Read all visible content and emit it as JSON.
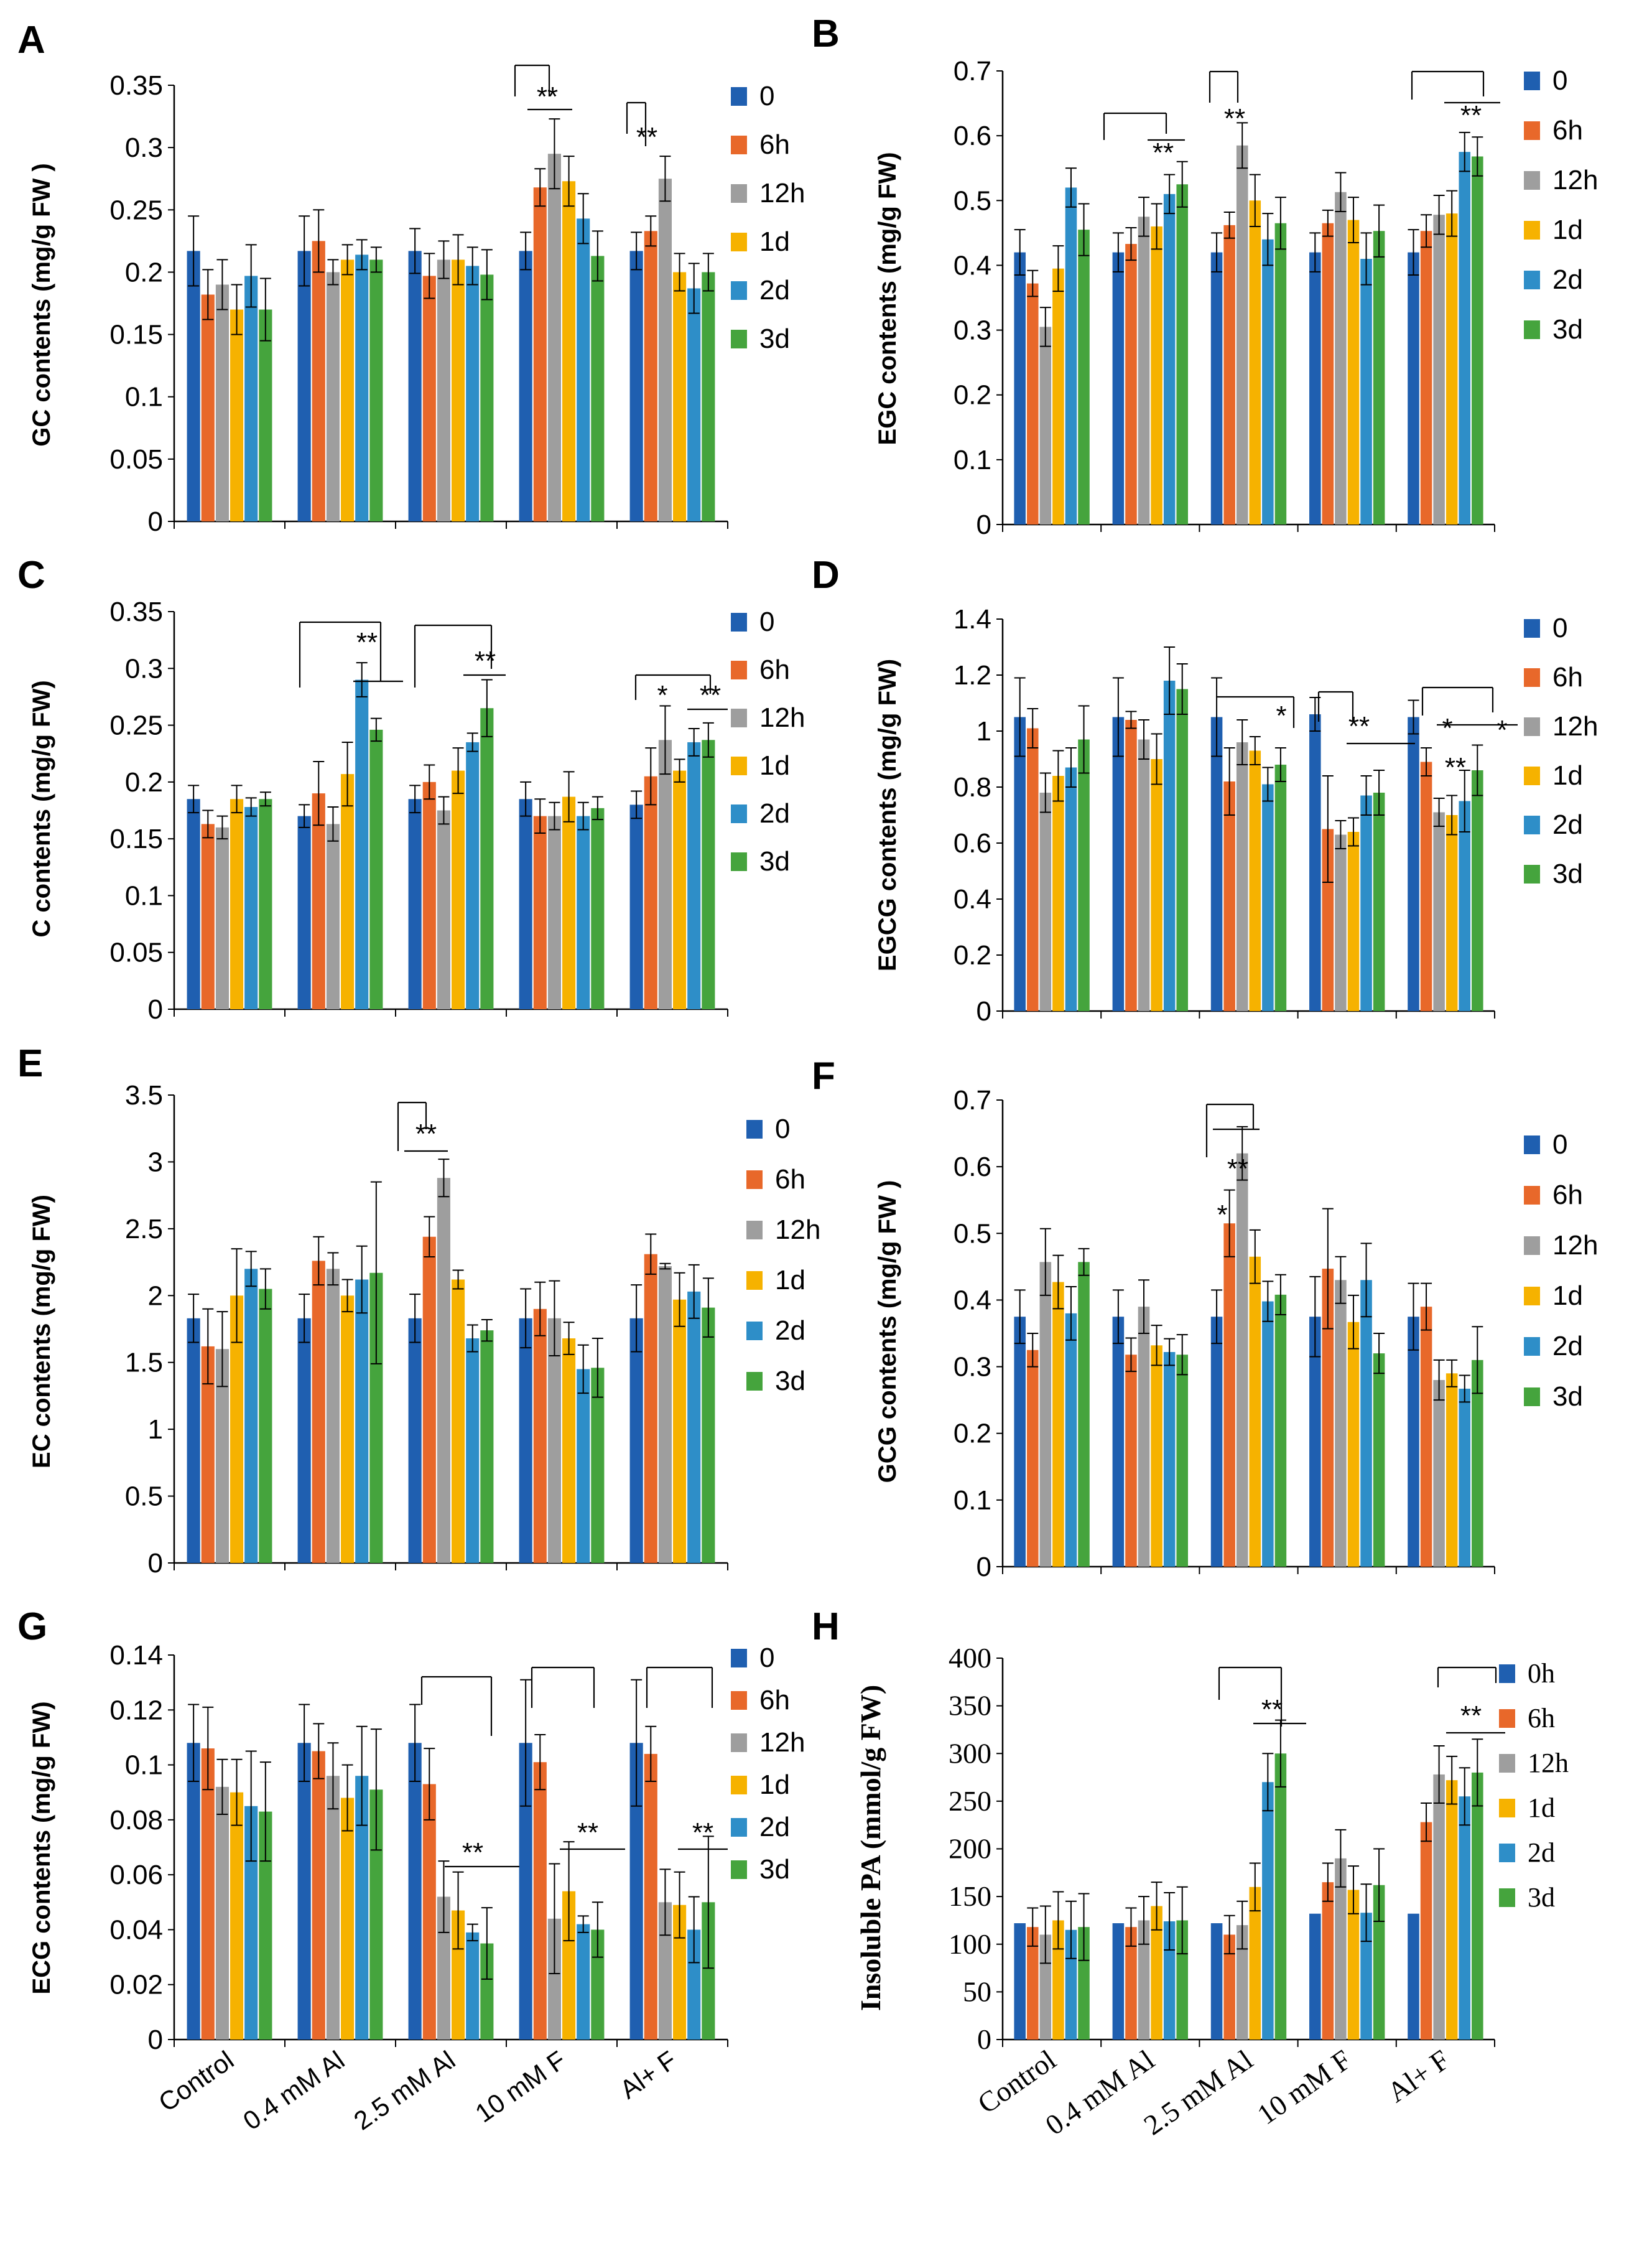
{
  "colors": {
    "0": "#1f5fb0",
    "6h": "#e8682a",
    "12h": "#9e9e9e",
    "1d": "#f6b200",
    "2d": "#2e8ec8",
    "3d": "#45a43d"
  },
  "chart_data": [
    {
      "panel": "A",
      "type": "bar",
      "ylabel": "GC contents (mg/g FW )",
      "ylim": [
        0,
        0.35
      ],
      "yticks": [
        "0",
        "0.05",
        "0.1",
        "0.15",
        "0.2",
        "0.25",
        "0.3",
        "0.35"
      ],
      "categories": [
        "Control",
        "0.4 mM Al",
        "2.5 mM Al",
        "10 mM F",
        "Al+ F"
      ],
      "legend": [
        "0",
        "6h",
        "12h",
        "1d",
        "2d",
        "3d"
      ],
      "series": [
        {
          "name": "0",
          "values": [
            0.217,
            0.217,
            0.217,
            0.217,
            0.217
          ],
          "errors": [
            0.028,
            0.028,
            0.018,
            0.015,
            0.015
          ]
        },
        {
          "name": "6h",
          "values": [
            0.182,
            0.225,
            0.197,
            0.268,
            0.233
          ],
          "errors": [
            0.02,
            0.025,
            0.018,
            0.015,
            0.012
          ]
        },
        {
          "name": "12h",
          "values": [
            0.19,
            0.2,
            0.21,
            0.295,
            0.275
          ],
          "errors": [
            0.02,
            0.01,
            0.015,
            0.028,
            0.018
          ]
        },
        {
          "name": "1d",
          "values": [
            0.17,
            0.21,
            0.21,
            0.273,
            0.2
          ],
          "errors": [
            0.02,
            0.012,
            0.02,
            0.02,
            0.015
          ]
        },
        {
          "name": "2d",
          "values": [
            0.197,
            0.214,
            0.205,
            0.243,
            0.187
          ],
          "errors": [
            0.025,
            0.012,
            0.015,
            0.02,
            0.02
          ]
        },
        {
          "name": "3d",
          "values": [
            0.17,
            0.21,
            0.198,
            0.213,
            0.2
          ],
          "errors": [
            0.025,
            0.01,
            0.02,
            0.02,
            0.015
          ]
        }
      ],
      "annotations": [
        "**",
        "**"
      ]
    },
    {
      "panel": "B",
      "type": "bar",
      "ylabel": "EGC contents (mg/g FW)",
      "ylim": [
        0,
        0.7
      ],
      "yticks": [
        "0",
        "0.1",
        "0.2",
        "0.3",
        "0.4",
        "0.5",
        "0.6",
        "0.7"
      ],
      "categories": [
        "Control",
        "0.4 mM Al",
        "2.5 mM Al",
        "10 mM F",
        "Al+ F"
      ],
      "legend": [
        "0",
        "6h",
        "12h",
        "1d",
        "2d",
        "3d"
      ],
      "series": [
        {
          "name": "0",
          "values": [
            0.42,
            0.42,
            0.42,
            0.42,
            0.42
          ],
          "errors": [
            0.035,
            0.03,
            0.03,
            0.03,
            0.035
          ]
        },
        {
          "name": "6h",
          "values": [
            0.372,
            0.433,
            0.462,
            0.465,
            0.453
          ],
          " errors": [
            0.02,
            0.025,
            0.02,
            0.02,
            0.025
          ],
          "errors": [
            0.02,
            0.025,
            0.02,
            0.02,
            0.025
          ]
        },
        {
          "name": "12h",
          "values": [
            0.305,
            0.475,
            0.585,
            0.513,
            0.478
          ],
          "errors": [
            0.03,
            0.03,
            0.035,
            0.03,
            0.03
          ]
        },
        {
          "name": "1d",
          "values": [
            0.395,
            0.46,
            0.5,
            0.47,
            0.48
          ],
          "errors": [
            0.035,
            0.035,
            0.04,
            0.035,
            0.035
          ]
        },
        {
          "name": "2d",
          "values": [
            0.52,
            0.51,
            0.44,
            0.41,
            0.575
          ],
          "errors": [
            0.03,
            0.03,
            0.04,
            0.04,
            0.03
          ]
        },
        {
          "name": "3d",
          "values": [
            0.455,
            0.525,
            0.465,
            0.453,
            0.568
          ],
          "errors": [
            0.04,
            0.035,
            0.04,
            0.04,
            0.03
          ]
        }
      ],
      "annotations": [
        "**",
        "**",
        "**"
      ]
    },
    {
      "panel": "C",
      "type": "bar",
      "ylabel": "C contents (mg/g FW)",
      "ylim": [
        0,
        0.35
      ],
      "yticks": [
        "0",
        "0.05",
        "0.1",
        "0.15",
        "0.2",
        "0.25",
        "0.3",
        "0.35"
      ],
      "categories": [
        "Control",
        "0.4 mM Al",
        "2.5 mM Al",
        "10 mM F",
        "Al+ F"
      ],
      "legend": [
        "0",
        "6h",
        "12h",
        "1d",
        "2d",
        "3d"
      ],
      "series": [
        {
          "name": "0",
          "values": [
            0.185,
            0.17,
            0.185,
            0.185,
            0.18
          ],
          "errors": [
            0.012,
            0.01,
            0.012,
            0.015,
            0.012
          ]
        },
        {
          "name": "6h",
          "values": [
            0.163,
            0.19,
            0.2,
            0.17,
            0.205
          ],
          "errors": [
            0.012,
            0.028,
            0.015,
            0.015,
            0.025
          ]
        },
        {
          "name": "12h",
          "values": [
            0.16,
            0.163,
            0.175,
            0.17,
            0.237
          ],
          "errors": [
            0.01,
            0.015,
            0.012,
            0.012,
            0.03
          ]
        },
        {
          "name": "1d",
          "values": [
            0.185,
            0.207,
            0.21,
            0.187,
            0.21
          ],
          "errors": [
            0.012,
            0.028,
            0.02,
            0.022,
            0.01
          ]
        },
        {
          "name": "2d",
          "values": [
            0.178,
            0.29,
            0.235,
            0.17,
            0.235
          ],
          "errors": [
            0.008,
            0.015,
            0.008,
            0.012,
            0.012
          ]
        },
        {
          "name": "3d",
          "values": [
            0.185,
            0.246,
            0.265,
            0.177,
            0.237
          ],
          "errors": [
            0.006,
            0.01,
            0.025,
            0.01,
            0.015
          ]
        }
      ],
      "annotations": [
        "**",
        "**",
        "*",
        "**"
      ]
    },
    {
      "panel": "D",
      "type": "bar",
      "ylabel": "EGCG contents (mg/g FW)",
      "ylim": [
        0,
        1.4
      ],
      "yticks": [
        "0",
        "0.2",
        "0.4",
        "0.6",
        "0.8",
        "1",
        "1.2",
        "1.4"
      ],
      "categories": [
        "Control",
        "0.4 mM Al",
        "2.5 mM Al",
        "10 mM F",
        "Al+ F"
      ],
      "legend": [
        "0",
        "6h",
        "12h",
        "1d",
        "2d",
        "3d"
      ],
      "series": [
        {
          "name": "0",
          "values": [
            1.05,
            1.05,
            1.05,
            1.06,
            1.05
          ],
          "errors": [
            0.14,
            0.14,
            0.14,
            0.06,
            0.06
          ]
        },
        {
          "name": "6h",
          "values": [
            1.01,
            1.04,
            0.82,
            0.65,
            0.89
          ],
          "errors": [
            0.07,
            0.03,
            0.12,
            0.19,
            0.05
          ]
        },
        {
          "name": "12h",
          "values": [
            0.78,
            0.97,
            0.96,
            0.63,
            0.71
          ],
          "errors": [
            0.07,
            0.07,
            0.08,
            0.05,
            0.05
          ]
        },
        {
          "name": "1d",
          "values": [
            0.84,
            0.9,
            0.93,
            0.64,
            0.7
          ],
          "errors": [
            0.09,
            0.09,
            0.05,
            0.05,
            0.07
          ]
        },
        {
          "name": "2d",
          "values": [
            0.87,
            1.18,
            0.81,
            0.77,
            0.75
          ],
          "errors": [
            0.07,
            0.12,
            0.06,
            0.07,
            0.11
          ]
        },
        {
          "name": "3d",
          "values": [
            0.97,
            1.15,
            0.88,
            0.78,
            0.86
          ],
          "errors": [
            0.12,
            0.09,
            0.06,
            0.08,
            0.09
          ]
        }
      ],
      "annotations": [
        "*",
        "**",
        "*",
        "**",
        "*"
      ]
    },
    {
      "panel": "E",
      "type": "bar",
      "ylabel": "EC contents (mg/g FW)",
      "ylim": [
        0,
        3.5
      ],
      "yticks": [
        "0",
        "0.5",
        "1",
        "1.5",
        "2",
        "2.5",
        "3",
        "3.5"
      ],
      "categories": [
        "Control",
        "0.4 mM Al",
        "2.5 mM Al",
        "10 mM F",
        "Al+ F"
      ],
      "legend": [
        "0",
        "6h",
        "12h",
        "1d",
        "2d",
        "3d"
      ],
      "series": [
        {
          "name": "0",
          "values": [
            1.83,
            1.83,
            1.83,
            1.83,
            1.83
          ],
          "errors": [
            0.18,
            0.18,
            0.18,
            0.22,
            0.25
          ]
        },
        {
          "name": "6h",
          "values": [
            1.62,
            2.26,
            2.44,
            1.9,
            2.31
          ],
          "errors": [
            0.28,
            0.18,
            0.15,
            0.2,
            0.15
          ]
        },
        {
          "name": "12h",
          "values": [
            1.6,
            2.2,
            2.88,
            1.83,
            2.22
          ],
          "errors": [
            0.28,
            0.12,
            0.14,
            0.28,
            0.02
          ]
        },
        {
          "name": "1d",
          "values": [
            2.0,
            2.0,
            2.12,
            1.68,
            1.97
          ],
          "errors": [
            0.35,
            0.12,
            0.07,
            0.12,
            0.2
          ]
        },
        {
          "name": "2d",
          "values": [
            2.2,
            2.12,
            1.68,
            1.45,
            2.03
          ],
          "errors": [
            0.13,
            0.25,
            0.1,
            0.18,
            0.2
          ]
        },
        {
          "name": "3d",
          "values": [
            2.05,
            2.17,
            1.74,
            1.46,
            1.91
          ],
          "errors": [
            0.15,
            0.68,
            0.08,
            0.22,
            0.22
          ]
        }
      ],
      "annotations": [
        "**"
      ]
    },
    {
      "panel": "F",
      "type": "bar",
      "ylabel": "GCG contents (mg/g FW )",
      "ylim": [
        0,
        0.7
      ],
      "yticks": [
        "0",
        "0.1",
        "0.2",
        "0.3",
        "0.4",
        "0.5",
        "0.6",
        "0.7"
      ],
      "categories": [
        "Control",
        "0.4 mM Al",
        "2.5 mM Al",
        "10 mM F",
        "Al+ F"
      ],
      "legend": [
        "0",
        "6h",
        "12h",
        "1d",
        "2d",
        "3d"
      ],
      "series": [
        {
          "name": "0",
          "values": [
            0.375,
            0.375,
            0.375,
            0.375,
            0.375
          ],
          "errors": [
            0.04,
            0.04,
            0.04,
            0.06,
            0.05
          ]
        },
        {
          "name": "6h",
          "values": [
            0.325,
            0.318,
            0.515,
            0.447,
            0.39
          ],
          "errors": [
            0.025,
            0.025,
            0.05,
            0.09,
            0.035
          ]
        },
        {
          "name": "12h",
          "values": [
            0.457,
            0.39,
            0.62,
            0.43,
            0.28
          ],
          "errors": [
            0.05,
            0.04,
            0.04,
            0.035,
            0.03
          ]
        },
        {
          "name": "1d",
          "values": [
            0.427,
            0.332,
            0.465,
            0.367,
            0.29
          ],
          "errors": [
            0.04,
            0.03,
            0.04,
            0.04,
            0.02
          ]
        },
        {
          "name": "2d",
          "values": [
            0.38,
            0.322,
            0.398,
            0.43,
            0.267
          ],
          "errors": [
            0.04,
            0.02,
            0.03,
            0.055,
            0.02
          ]
        },
        {
          "name": "3d",
          "values": [
            0.457,
            0.318,
            0.408,
            0.32,
            0.31
          ],
          "errors": [
            0.02,
            0.03,
            0.03,
            0.03,
            0.05
          ]
        }
      ],
      "annotations": [
        "*",
        "**"
      ]
    },
    {
      "panel": "G",
      "type": "bar",
      "ylabel": "ECG contents (mg/g FW)",
      "ylim": [
        0,
        0.14
      ],
      "yticks": [
        "0",
        "0.02",
        "0.04",
        "0.06",
        "0.08",
        "0.1",
        "0.12",
        "0.14"
      ],
      "categories": [
        "Control",
        "0.4 mM Al",
        "2.5 mM Al",
        "10 mM F",
        "Al+ F"
      ],
      "legend": [
        "0",
        "6h",
        "12h",
        "1d",
        "2d",
        "3d"
      ],
      "series": [
        {
          "name": "0",
          "values": [
            0.108,
            0.108,
            0.108,
            0.108,
            0.108
          ],
          "errors": [
            0.014,
            0.014,
            0.014,
            0.023,
            0.023
          ]
        },
        {
          "name": "6h",
          "values": [
            0.106,
            0.105,
            0.093,
            0.101,
            0.104
          ],
          "errors": [
            0.015,
            0.01,
            0.013,
            0.01,
            0.01
          ]
        },
        {
          "name": "12h",
          "values": [
            0.092,
            0.096,
            0.052,
            0.044,
            0.05
          ],
          "errors": [
            0.01,
            0.012,
            0.013,
            0.02,
            0.012
          ]
        },
        {
          "name": "1d",
          "values": [
            0.09,
            0.088,
            0.047,
            0.054,
            0.049
          ],
          "errors": [
            0.012,
            0.012,
            0.014,
            0.018,
            0.012
          ]
        },
        {
          "name": "2d",
          "values": [
            0.085,
            0.096,
            0.039,
            0.042,
            0.04
          ],
          "errors": [
            0.02,
            0.018,
            0.003,
            0.003,
            0.012
          ]
        },
        {
          "name": "3d",
          "values": [
            0.083,
            0.091,
            0.035,
            0.04,
            0.05
          ],
          "errors": [
            0.018,
            0.022,
            0.013,
            0.01,
            0.024
          ]
        }
      ],
      "annotations": [
        "**",
        "**",
        "**"
      ]
    },
    {
      "panel": "H",
      "type": "bar",
      "ylabel": "Insoluble PA (mmol/g FW)",
      "ylim": [
        0,
        400
      ],
      "yticks": [
        "0",
        "50",
        "100",
        "150",
        "200",
        "250",
        "300",
        "350",
        "400"
      ],
      "categories": [
        "Control",
        "0.4 mM Al",
        "2.5 mM Al",
        "10 mM F",
        "Al+ F"
      ],
      "legend": [
        "0h",
        "6h",
        "12h",
        "1d",
        "2d",
        "3d"
      ],
      "series": [
        {
          "name": "0h",
          "values": [
            122,
            122,
            122,
            132,
            132
          ],
          "errors": [
            0,
            0,
            0,
            0,
            0
          ]
        },
        {
          "name": "6h",
          "values": [
            118,
            118,
            110,
            165,
            228
          ],
          "errors": [
            20,
            20,
            20,
            20,
            20
          ]
        },
        {
          "name": "12h",
          "values": [
            110,
            125,
            120,
            190,
            278
          ],
          "errors": [
            30,
            25,
            25,
            30,
            30
          ]
        },
        {
          "name": "1d",
          "values": [
            125,
            140,
            160,
            157,
            272
          ],
          "errors": [
            30,
            25,
            25,
            25,
            25
          ]
        },
        {
          "name": "2d",
          "values": [
            115,
            124,
            270,
            133,
            255
          ],
          "errors": [
            30,
            30,
            30,
            30,
            30
          ]
        },
        {
          "name": "3d",
          "values": [
            118,
            125,
            300,
            162,
            280
          ],
          "errors": [
            35,
            35,
            35,
            38,
            35
          ]
        }
      ],
      "annotations": [
        "**",
        "**"
      ]
    }
  ]
}
